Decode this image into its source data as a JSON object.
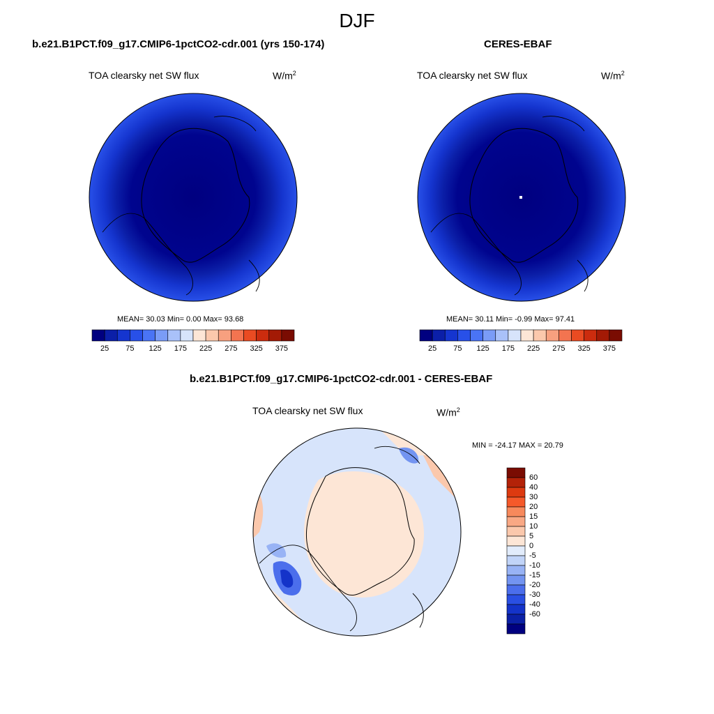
{
  "season": "DJF",
  "panels": [
    {
      "case_title": "b.e21.B1PCT.f09_g17.CMIP6-1pctCO2-cdr.001 (yrs 150-174)",
      "variable": "TOA clearsky net SW flux",
      "units_base": "W/m",
      "units_exp": "2",
      "stats": "MEAN=  30.03  Min=   0.00  Max=  93.68"
    },
    {
      "case_title": "CERES-EBAF",
      "variable": "TOA clearsky net SW flux",
      "units_base": "W/m",
      "units_exp": "2",
      "stats": "MEAN=  30.11  Min=  -0.99  Max=  97.41"
    }
  ],
  "diff_panel": {
    "case_title": "b.e21.B1PCT.f09_g17.CMIP6-1pctCO2-cdr.001 - CERES-EBAF",
    "variable": "TOA clearsky net SW flux",
    "units_base": "W/m",
    "units_exp": "2",
    "stats": "MIN = -24.17 MAX =  20.79"
  },
  "colorbars": {
    "field": {
      "colors": [
        "#000080",
        "#0b1fa8",
        "#1535cf",
        "#2850e8",
        "#4a74f5",
        "#7a9cf7",
        "#a9c1f9",
        "#d7e4fb",
        "#fde6d6",
        "#fbc8ac",
        "#f7a07f",
        "#f37450",
        "#ea4b22",
        "#cc2c0e",
        "#a31a05",
        "#7a0c02"
      ],
      "labels": [
        "25",
        "75",
        "125",
        "175",
        "225",
        "275",
        "325",
        "375"
      ]
    },
    "diff": {
      "colors": [
        "#7a0c02",
        "#b32208",
        "#dd3a10",
        "#f5592a",
        "#f7895c",
        "#f9a884",
        "#fbc8ac",
        "#fde6d6",
        "#e2ecfb",
        "#c1d4f8",
        "#98b3f5",
        "#7394f1",
        "#4b6eec",
        "#2a4fe3",
        "#1433c9",
        "#0b20a6",
        "#000080"
      ],
      "labels": [
        "60",
        "40",
        "30",
        "20",
        "15",
        "10",
        "5",
        "0",
        "-5",
        "-10",
        "-15",
        "-20",
        "-30",
        "-40",
        "-60"
      ]
    }
  }
}
